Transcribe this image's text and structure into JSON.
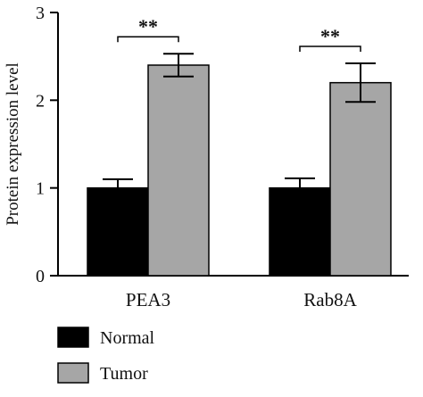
{
  "chart_data": {
    "type": "bar",
    "categories": [
      "PEA3",
      "Rab8A"
    ],
    "series": [
      {
        "name": "Normal",
        "values": [
          1.0,
          1.0
        ],
        "errors": [
          0.1,
          0.11
        ],
        "color": "#000000"
      },
      {
        "name": "Tumor",
        "values": [
          2.4,
          2.2
        ],
        "errors": [
          0.13,
          0.22
        ],
        "color": "#a6a6a6"
      }
    ],
    "ylabel": "Protein expression level",
    "xlabel": "",
    "ylim": [
      0,
      3
    ],
    "yticks": [
      0,
      1,
      2,
      3
    ],
    "grid": false,
    "legend": "bottom-left",
    "annotations": [
      {
        "category": "PEA3",
        "text": "**"
      },
      {
        "category": "Rab8A",
        "text": "**"
      }
    ]
  }
}
